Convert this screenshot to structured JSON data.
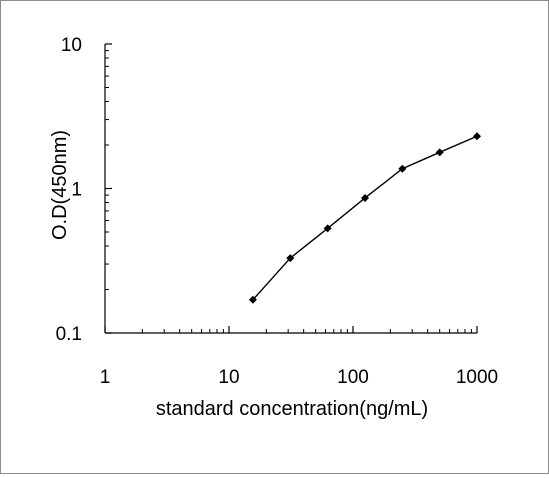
{
  "chart_data": {
    "type": "line",
    "title": "",
    "xlabel": "standard concentration(ng/mL)",
    "ylabel": "O.D(450nm)",
    "xscale": "log",
    "yscale": "log",
    "xlim": [
      1,
      1000
    ],
    "ylim": [
      0.1,
      10
    ],
    "xticks": [
      {
        "value": 1,
        "label": "1"
      },
      {
        "value": 10,
        "label": "10"
      },
      {
        "value": 100,
        "label": "100"
      },
      {
        "value": 1000,
        "label": "1000"
      }
    ],
    "yticks": [
      {
        "value": 0.1,
        "label": "0.1"
      },
      {
        "value": 1,
        "label": "1"
      },
      {
        "value": 10,
        "label": "10"
      }
    ],
    "grid": false,
    "legend": "none",
    "series": [
      {
        "color": "#000000",
        "marker": "diamond",
        "x": [
          15.6,
          31.2,
          62.5,
          125,
          250,
          500,
          1000
        ],
        "y": [
          0.17,
          0.33,
          0.53,
          0.86,
          1.37,
          1.78,
          2.3
        ]
      }
    ]
  }
}
